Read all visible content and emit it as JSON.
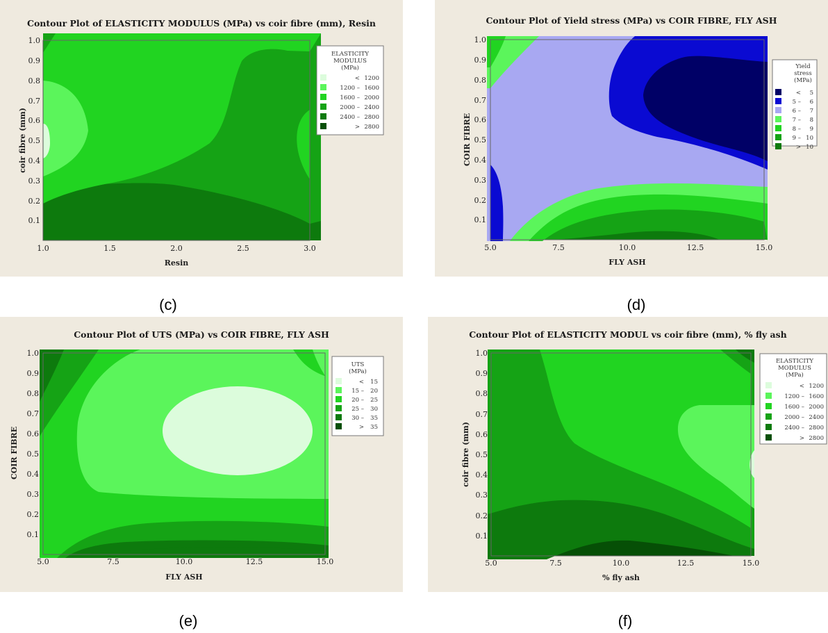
{
  "captions": [
    "(c)",
    "(d)",
    "(e)",
    "(f)"
  ],
  "chart_data": [
    {
      "type": "contour",
      "title": "Contour Plot of ELASTICITY MODULUS (MPa) vs coir fibre (mm), Resin",
      "xlabel": "Resin",
      "ylabel": "coir fibre (mm)",
      "xlim": [
        1.0,
        3.0
      ],
      "ylim": [
        0.0,
        1.0
      ],
      "xticks": [
        "1.0",
        "1.5",
        "2.0",
        "2.5",
        "3.0"
      ],
      "yticks": [
        "0.1",
        "0.2",
        "0.3",
        "0.4",
        "0.5",
        "0.6",
        "0.7",
        "0.8",
        "0.9",
        "1.0"
      ],
      "legend_title": [
        "ELASTICITY",
        "MODULUS",
        "(MPa)"
      ],
      "legend": [
        {
          "label": "<",
          "value": "1200",
          "color": "#dcfcdc"
        },
        {
          "label": "1200 –",
          "value": "1600",
          "color": "#5bf55b"
        },
        {
          "label": "1600 –",
          "value": "2000",
          "color": "#21d421"
        },
        {
          "label": "2000 –",
          "value": "2400",
          "color": "#15a315"
        },
        {
          "label": "2400 –",
          "value": "2800",
          "color": "#0d7a0d"
        },
        {
          "label": ">",
          "value": "2800",
          "color": "#064f06"
        }
      ]
    },
    {
      "type": "contour",
      "title": "Contour Plot of Yield stress (MPa) vs COIR FIBRE, FLY ASH",
      "xlabel": "FLY ASH",
      "ylabel": "COIR FIBRE",
      "xlim": [
        5.0,
        15.0
      ],
      "ylim": [
        0.0,
        1.0
      ],
      "xticks": [
        "5.0",
        "7.5",
        "10.0",
        "12.5",
        "15.0"
      ],
      "yticks": [
        "0.1",
        "0.2",
        "0.3",
        "0.4",
        "0.5",
        "0.6",
        "0.7",
        "0.8",
        "0.9",
        "1.0"
      ],
      "legend_title": [
        "Yield",
        "stress",
        "(MPa)"
      ],
      "legend": [
        {
          "label": "<",
          "value": "5",
          "color": "#000066"
        },
        {
          "label": "5 –",
          "value": "6",
          "color": "#0a0ad2"
        },
        {
          "label": "6 –",
          "value": "7",
          "color": "#a8a8f2"
        },
        {
          "label": "7 –",
          "value": "8",
          "color": "#5bf55b"
        },
        {
          "label": "8 –",
          "value": "9",
          "color": "#21d421"
        },
        {
          "label": "9 –",
          "value": "10",
          "color": "#15a315"
        },
        {
          "label": ">",
          "value": "10",
          "color": "#0d7a0d"
        }
      ]
    },
    {
      "type": "contour",
      "title": "Contour Plot of UTS (MPa) vs COIR FIBRE, FLY ASH",
      "xlabel": "FLY ASH",
      "ylabel": "COIR FIBRE",
      "xlim": [
        5.0,
        15.0
      ],
      "ylim": [
        0.0,
        1.0
      ],
      "xticks": [
        "5.0",
        "7.5",
        "10.0",
        "12.5",
        "15.0"
      ],
      "yticks": [
        "0.1",
        "0.2",
        "0.3",
        "0.4",
        "0.5",
        "0.6",
        "0.7",
        "0.8",
        "0.9",
        "1.0"
      ],
      "legend_title": [
        "UTS",
        "(MPa)"
      ],
      "legend": [
        {
          "label": "<",
          "value": "15",
          "color": "#dcfcdc"
        },
        {
          "label": "15 –",
          "value": "20",
          "color": "#5bf55b"
        },
        {
          "label": "20 –",
          "value": "25",
          "color": "#21d421"
        },
        {
          "label": "25 –",
          "value": "30",
          "color": "#15a315"
        },
        {
          "label": "30 –",
          "value": "35",
          "color": "#0d7a0d"
        },
        {
          "label": ">",
          "value": "35",
          "color": "#064f06"
        }
      ]
    },
    {
      "type": "contour",
      "title": "Contour Plot of ELASTICITY MODUL vs coir fibre (mm), % fly ash",
      "xlabel": "% fly ash",
      "ylabel": "coir fibre (mm)",
      "xlim": [
        5.0,
        15.0
      ],
      "ylim": [
        0.0,
        1.0
      ],
      "xticks": [
        "5.0",
        "7.5",
        "10.0",
        "12.5",
        "15.0"
      ],
      "yticks": [
        "0.1",
        "0.2",
        "0.3",
        "0.4",
        "0.5",
        "0.6",
        "0.7",
        "0.8",
        "0.9",
        "1.0"
      ],
      "legend_title": [
        "ELASTICITY",
        "MODULUS",
        "(MPa)"
      ],
      "legend": [
        {
          "label": "<",
          "value": "1200",
          "color": "#dcfcdc"
        },
        {
          "label": "1200 –",
          "value": "1600",
          "color": "#5bf55b"
        },
        {
          "label": "1600 –",
          "value": "2000",
          "color": "#21d421"
        },
        {
          "label": "2000 –",
          "value": "2400",
          "color": "#15a315"
        },
        {
          "label": "2400 –",
          "value": "2800",
          "color": "#0d7a0d"
        },
        {
          "label": ">",
          "value": "2800",
          "color": "#064f06"
        }
      ]
    }
  ]
}
